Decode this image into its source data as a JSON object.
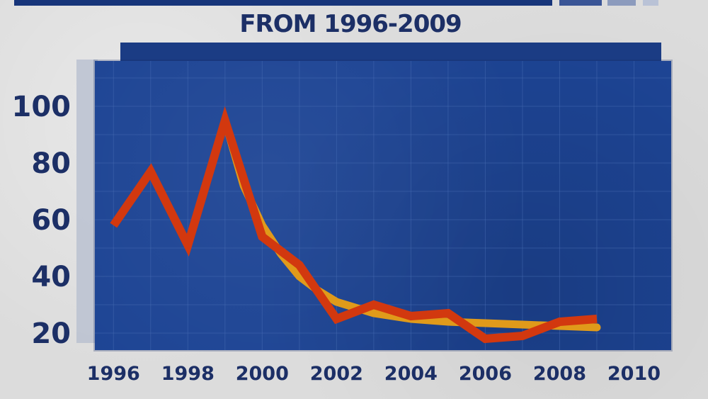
{
  "title": "FROM 1996-2009",
  "colors": {
    "background": "#dcdcdc",
    "panel": "#1d4494",
    "grid": "#4a6fb5",
    "trend_line": "#e09a1a",
    "data_line": "#d2380f",
    "text": "#1c2f66"
  },
  "chart_data": {
    "type": "line",
    "title": "FROM 1996-2009",
    "xlabel": "",
    "ylabel": "",
    "xlim": [
      1995.5,
      2011
    ],
    "ylim": [
      14,
      116
    ],
    "xticks": [
      "1996",
      "1998",
      "2000",
      "2002",
      "2004",
      "2006",
      "2008",
      "2010"
    ],
    "yticks": [
      "100",
      "80",
      "60",
      "40",
      "20"
    ],
    "grid": true,
    "series": [
      {
        "kind": "fitted-curve",
        "color": "#e09a1a",
        "x": [
          1999,
          1999.5,
          2000,
          2000.5,
          2001,
          2001.5,
          2002,
          2003,
          2004,
          2005,
          2006,
          2007,
          2008,
          2009
        ],
        "y": [
          95,
          72,
          58,
          48,
          40,
          35,
          31,
          27,
          25,
          24,
          23.5,
          23,
          22.5,
          22
        ]
      },
      {
        "kind": "data",
        "color": "#d2380f",
        "x": [
          1996,
          1997,
          1998,
          1999,
          2000,
          2001,
          2002,
          2003,
          2004,
          2005,
          2006,
          2007,
          2008,
          2009
        ],
        "y": [
          58,
          77,
          51,
          95,
          54,
          44,
          25,
          30,
          26,
          27,
          18,
          19,
          24,
          25
        ]
      }
    ]
  }
}
